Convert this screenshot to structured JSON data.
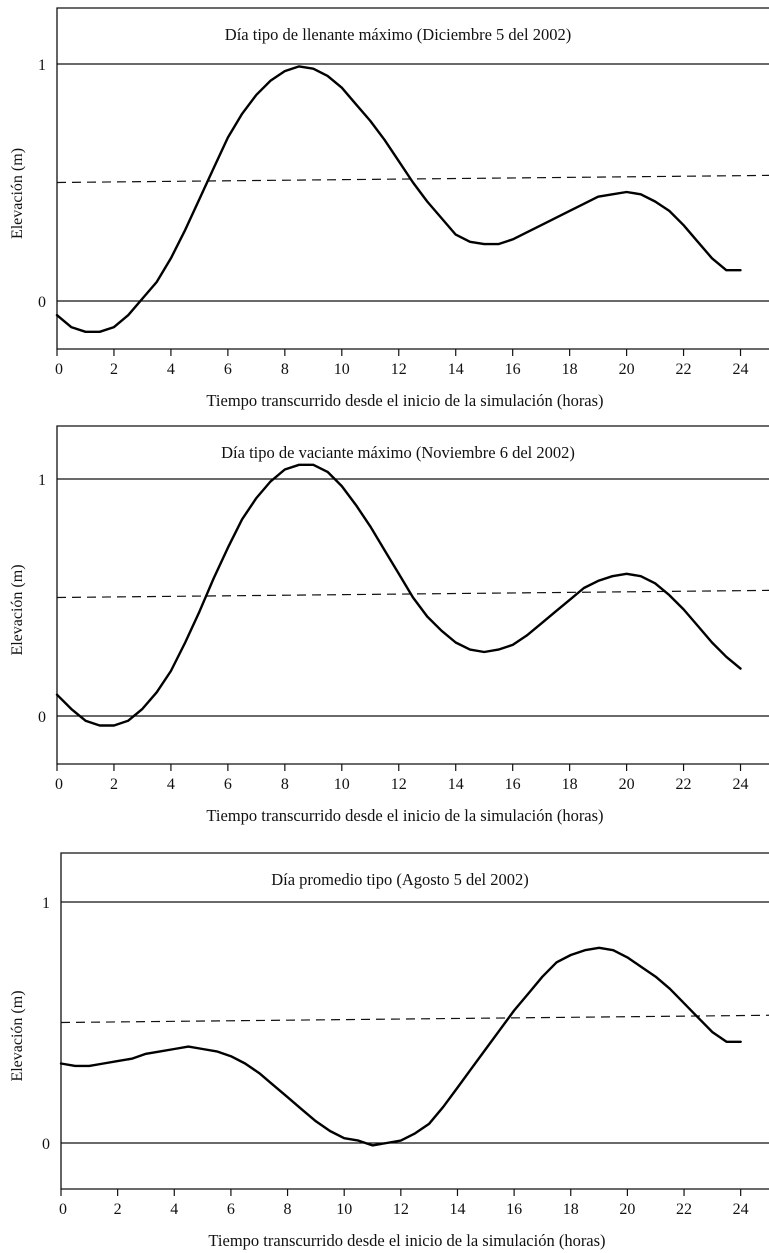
{
  "chart_data": [
    {
      "type": "line",
      "title": "Día tipo de llenante máximo (Diciembre 5 del 2002)",
      "xlabel": "Tiempo transcurrido desde el inicio de la simulación (horas)",
      "ylabel": "Elevación (m)",
      "xlim": [
        0,
        25
      ],
      "ylim": [
        -0.18,
        1.18
      ],
      "xticks": [
        "0",
        "2",
        "4",
        "6",
        "8",
        "10",
        "12",
        "14",
        "16",
        "18",
        "20",
        "22",
        "24"
      ],
      "yticks": [
        "0",
        "1"
      ],
      "reference_lines": [
        {
          "style": "solid",
          "y": [
            0,
            0
          ]
        },
        {
          "style": "dashed",
          "y": [
            0.5,
            0.53
          ]
        },
        {
          "style": "solid",
          "y": [
            1,
            1
          ]
        }
      ],
      "series": [
        {
          "x": [
            0,
            0.5,
            1,
            1.5,
            2,
            2.5,
            3,
            3.5,
            4,
            4.5,
            5,
            5.5,
            6,
            6.5,
            7,
            7.5,
            8,
            8.5,
            9,
            9.5,
            10,
            10.5,
            11,
            11.5,
            12,
            12.5,
            13,
            13.5,
            14,
            14.5,
            15,
            15.5,
            16,
            16.5,
            17,
            17.5,
            18,
            18.5,
            19,
            19.5,
            20,
            20.5,
            21,
            21.5,
            22,
            22.5,
            23,
            23.5,
            24
          ],
          "values": [
            -0.06,
            -0.11,
            -0.13,
            -0.13,
            -0.11,
            -0.06,
            0.01,
            0.08,
            0.18,
            0.3,
            0.43,
            0.56,
            0.69,
            0.79,
            0.87,
            0.93,
            0.97,
            0.99,
            0.98,
            0.95,
            0.9,
            0.83,
            0.76,
            0.68,
            0.59,
            0.5,
            0.42,
            0.35,
            0.28,
            0.25,
            0.24,
            0.24,
            0.26,
            0.29,
            0.32,
            0.35,
            0.38,
            0.41,
            0.44,
            0.45,
            0.46,
            0.45,
            0.42,
            0.38,
            0.32,
            0.25,
            0.18,
            0.13,
            0.13
          ]
        }
      ]
    },
    {
      "type": "line",
      "title": "Día tipo de vaciante máximo (Noviembre 6 del 2002)",
      "xlabel": "Tiempo transcurrido desde el inicio de la simulación (horas)",
      "ylabel": "Elevación (m)",
      "xlim": [
        0,
        25
      ],
      "ylim": [
        -0.18,
        1.18
      ],
      "xticks": [
        "0",
        "2",
        "4",
        "6",
        "8",
        "10",
        "12",
        "14",
        "16",
        "18",
        "20",
        "22",
        "24"
      ],
      "yticks": [
        "0",
        "1"
      ],
      "reference_lines": [
        {
          "style": "solid",
          "y": [
            0,
            0
          ]
        },
        {
          "style": "dashed",
          "y": [
            0.5,
            0.53
          ]
        },
        {
          "style": "solid",
          "y": [
            1,
            1
          ]
        }
      ],
      "series": [
        {
          "x": [
            0,
            0.5,
            1,
            1.5,
            2,
            2.5,
            3,
            3.5,
            4,
            4.5,
            5,
            5.5,
            6,
            6.5,
            7,
            7.5,
            8,
            8.5,
            9,
            9.5,
            10,
            10.5,
            11,
            11.5,
            12,
            12.5,
            13,
            13.5,
            14,
            14.5,
            15,
            15.5,
            16,
            16.5,
            17,
            17.5,
            18,
            18.5,
            19,
            19.5,
            20,
            20.5,
            21,
            21.5,
            22,
            22.5,
            23,
            23.5,
            24
          ],
          "values": [
            0.09,
            0.03,
            -0.02,
            -0.04,
            -0.04,
            -0.02,
            0.03,
            0.1,
            0.19,
            0.31,
            0.44,
            0.58,
            0.71,
            0.83,
            0.92,
            0.99,
            1.04,
            1.06,
            1.06,
            1.03,
            0.97,
            0.89,
            0.8,
            0.7,
            0.6,
            0.5,
            0.42,
            0.36,
            0.31,
            0.28,
            0.27,
            0.28,
            0.3,
            0.34,
            0.39,
            0.44,
            0.49,
            0.54,
            0.57,
            0.59,
            0.6,
            0.59,
            0.56,
            0.51,
            0.45,
            0.38,
            0.31,
            0.25,
            0.2
          ]
        }
      ]
    },
    {
      "type": "line",
      "title": "Día promedio tipo (Agosto 5 del 2002)",
      "xlabel": "Tiempo transcurrido desde el inicio de la simulación (horas)",
      "ylabel": "Elevación (m)",
      "xlim": [
        0,
        25
      ],
      "ylim": [
        -0.18,
        1.18
      ],
      "xticks": [
        "0",
        "2",
        "4",
        "6",
        "8",
        "10",
        "12",
        "14",
        "16",
        "18",
        "20",
        "22",
        "24"
      ],
      "yticks": [
        "0",
        "1"
      ],
      "reference_lines": [
        {
          "style": "solid",
          "y": [
            0,
            0
          ]
        },
        {
          "style": "dashed",
          "y": [
            0.5,
            0.53
          ]
        },
        {
          "style": "solid",
          "y": [
            1,
            1
          ]
        }
      ],
      "series": [
        {
          "x": [
            0,
            0.5,
            1,
            1.5,
            2,
            2.5,
            3,
            3.5,
            4,
            4.5,
            5,
            5.5,
            6,
            6.5,
            7,
            7.5,
            8,
            8.5,
            9,
            9.5,
            10,
            10.5,
            11,
            11.5,
            12,
            12.5,
            13,
            13.5,
            14,
            14.5,
            15,
            15.5,
            16,
            16.5,
            17,
            17.5,
            18,
            18.5,
            19,
            19.5,
            20,
            20.5,
            21,
            21.5,
            22,
            22.5,
            23,
            23.5,
            24
          ],
          "values": [
            0.33,
            0.32,
            0.32,
            0.33,
            0.34,
            0.35,
            0.37,
            0.38,
            0.39,
            0.4,
            0.39,
            0.38,
            0.36,
            0.33,
            0.29,
            0.24,
            0.19,
            0.14,
            0.09,
            0.05,
            0.02,
            0.01,
            -0.01,
            0.0,
            0.01,
            0.04,
            0.08,
            0.15,
            0.23,
            0.31,
            0.39,
            0.47,
            0.55,
            0.62,
            0.69,
            0.75,
            0.78,
            0.8,
            0.81,
            0.8,
            0.77,
            0.73,
            0.69,
            0.64,
            0.58,
            0.52,
            0.46,
            0.42,
            0.42
          ]
        }
      ]
    }
  ]
}
